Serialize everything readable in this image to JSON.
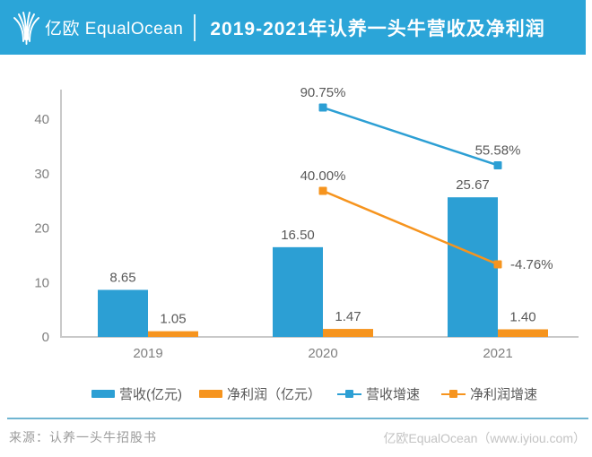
{
  "header": {
    "logo_text": "亿欧 EqualOcean",
    "title": "2019-2021年认养一头牛营收及净利润"
  },
  "colors": {
    "header_bg": "#2BA5D8",
    "blue": "#2C9FD4",
    "orange": "#F6941E",
    "axis": "#C9C9C9",
    "tick_label": "#808080",
    "data_label": "#595959",
    "footer_rule": "#6FB5D1"
  },
  "chart_data": {
    "type": "bar+line combo",
    "title": "2019-2021年认养一头牛营收及净利润",
    "categories": [
      "2019",
      "2020",
      "2021"
    ],
    "series": [
      {
        "name": "营收(亿元)",
        "type": "bar",
        "axis": "primary",
        "color": "#2C9FD4",
        "values": [
          8.65,
          16.5,
          25.67
        ],
        "labels": [
          "8.65",
          "16.50",
          "25.67"
        ]
      },
      {
        "name": "净利润（亿元）",
        "type": "bar",
        "axis": "primary",
        "color": "#F6941E",
        "values": [
          1.05,
          1.47,
          1.4
        ],
        "labels": [
          "1.05",
          "1.47",
          "1.40"
        ]
      },
      {
        "name": "营收增速",
        "type": "line",
        "axis": "secondary",
        "color": "#2C9FD4",
        "values": [
          null,
          90.75,
          55.58
        ],
        "labels": [
          null,
          "90.75%",
          "55.58%"
        ]
      },
      {
        "name": "净利润增速",
        "type": "line",
        "axis": "secondary",
        "color": "#F6941E",
        "values": [
          null,
          40.0,
          -4.76
        ],
        "labels": [
          null,
          "40.00%",
          "-4.76%"
        ]
      }
    ],
    "primary_axis": {
      "ticks": [
        0,
        10,
        20,
        30,
        40
      ],
      "min": 0,
      "max": 45.5,
      "label": ""
    },
    "secondary_axis": {
      "visible": false,
      "approx_min_pct": -49,
      "approx_max_pct": 101
    },
    "grid": false,
    "legend_position": "bottom"
  },
  "legend": {
    "items": [
      {
        "label": "营收(亿元)",
        "type": "bar",
        "color": "#2C9FD4"
      },
      {
        "label": "净利润（亿元）",
        "type": "bar",
        "color": "#F6941E"
      },
      {
        "label": "营收增速",
        "type": "line",
        "color": "#2C9FD4"
      },
      {
        "label": "净利润增速",
        "type": "line",
        "color": "#F6941E"
      }
    ]
  },
  "footer": {
    "source": "来源：认养一头牛招股书",
    "credit": "亿欧EqualOcean（www.iyiou.com）"
  }
}
